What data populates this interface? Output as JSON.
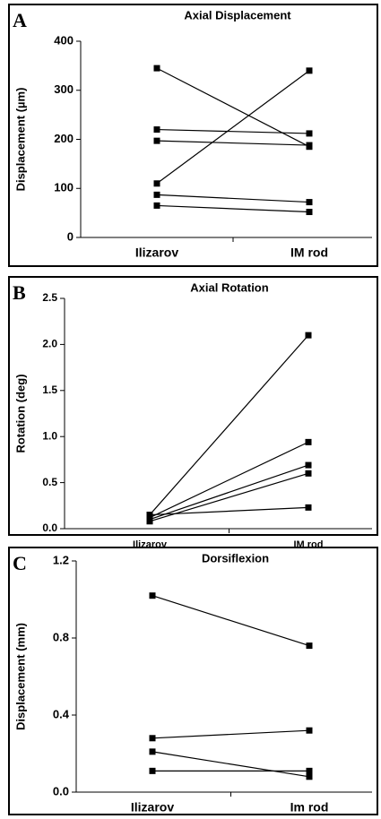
{
  "chart_data": [
    {
      "type": "line",
      "panel": "A",
      "title": "Axial Displacement",
      "y_label": "Displacement (µm)",
      "categories": [
        "Ilizarov",
        "IM rod"
      ],
      "series": [
        {
          "color": "#000000",
          "values": [
            345,
            185
          ]
        },
        {
          "color": "#000000",
          "values": [
            110,
            340
          ]
        },
        {
          "color": "#000000",
          "values": [
            220,
            212
          ]
        },
        {
          "color": "#000000",
          "values": [
            197,
            188
          ]
        },
        {
          "color": "#000000",
          "values": [
            87,
            72
          ]
        },
        {
          "color": "#000000",
          "values": [
            65,
            52
          ]
        }
      ],
      "ylim": [
        0,
        400
      ],
      "yticks": [
        0,
        100,
        200,
        300,
        400
      ]
    },
    {
      "type": "line",
      "panel": "B",
      "title": "Axial Rotation",
      "y_label": "Rotation (deg)",
      "categories": [
        "Ilizarov",
        "IM rod"
      ],
      "series": [
        {
          "color": "#000000",
          "values": [
            0.15,
            2.1
          ]
        },
        {
          "color": "#000000",
          "values": [
            0.12,
            0.94
          ]
        },
        {
          "color": "#000000",
          "values": [
            0.1,
            0.69
          ]
        },
        {
          "color": "#000000",
          "values": [
            0.08,
            0.6
          ]
        },
        {
          "color": "#000000",
          "values": [
            0.15,
            0.23
          ]
        }
      ],
      "ylim": [
        0,
        2.5
      ],
      "yticks": [
        {
          "value": 0,
          "label": "0.0"
        },
        0.5,
        {
          "value": 1,
          "label": "1.0"
        },
        1.5,
        {
          "value": 2,
          "label": "2.0"
        },
        2.5
      ]
    },
    {
      "type": "line",
      "panel": "C",
      "title": "Dorsiflexion",
      "y_label": "Displacement (mm)",
      "categories": [
        "Ilizarov",
        "Im rod"
      ],
      "series": [
        {
          "color": "#000000",
          "values": [
            1.02,
            0.76
          ]
        },
        {
          "color": "#000000",
          "values": [
            0.28,
            0.32
          ]
        },
        {
          "color": "#000000",
          "values": [
            0.21,
            0.08
          ]
        },
        {
          "color": "#000000",
          "values": [
            0.11,
            0.11
          ]
        }
      ],
      "ylim": [
        0,
        1.2
      ],
      "yticks": [
        {
          "value": 0,
          "label": "0.0"
        },
        0.4,
        0.8,
        1.2
      ]
    }
  ]
}
